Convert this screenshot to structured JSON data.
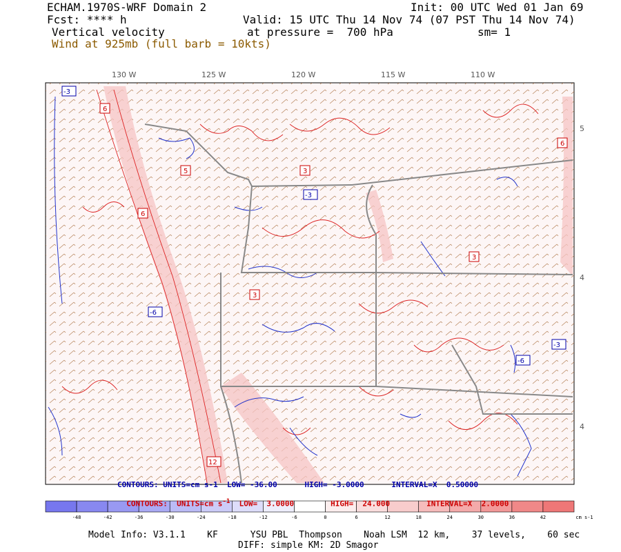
{
  "header": {
    "model": "ECHAM.1970S-WRF Domain 2",
    "init": "Init: 00 UTC Wed 01 Jan 69",
    "fcst": "Fcst: **** h",
    "valid": "Valid: 15 UTC Thu 14 Nov 74 (07 PST Thu 14 Nov 74)",
    "field": "Vertical velocity",
    "pressure": "at pressure =  700 hPa",
    "sm": "sm= 1",
    "wind": "Wind at 925mb (full barb = 10kts)"
  },
  "longitudes": [
    "130 W",
    "125 W",
    "120 W",
    "115 W",
    "110 W"
  ],
  "latitudes": [
    "5",
    "4",
    "4"
  ],
  "contour_info": {
    "blue": "CONTOURS: UNITS=cm s-1  LOW= -36.00      HIGH= -3.0000      INTERVAL=X  0.50000",
    "red_prefix": "CONTOURS:  UNITS=cm s",
    "red_sup": "-1",
    "red_low": "LOW=  3.0000",
    "red_high": "HIGH=  24.000",
    "red_interval": "INTERVAL=X  2.0000"
  },
  "colorbar": {
    "labels": [
      "-48",
      "-42",
      "-36",
      "-30",
      "-24",
      "-18",
      "-12",
      "-6",
      "0",
      "6",
      "12",
      "18",
      "24",
      "30",
      "36",
      "42"
    ],
    "units": "cm s-1",
    "colors": [
      "#7777ee",
      "#8888f0",
      "#9999f2",
      "#aaaaf4",
      "#bbbbf6",
      "#ccccf8",
      "#ddddfa",
      "#eeeefc",
      "#ffffff",
      "#fceeee",
      "#fadddd",
      "#f8cccc",
      "#f6bbbb",
      "#f4aaaa",
      "#f29999",
      "#f08888",
      "#ee7777"
    ]
  },
  "contour_labels_red": [
    "6",
    "3",
    "5",
    "6",
    "3",
    "12",
    "3",
    "6"
  ],
  "contour_labels_blue": [
    "-3",
    "-6",
    "-3",
    "-6",
    "-3"
  ],
  "footer": {
    "line1": "Model Info: V3.1.1    KF      YSU PBL  Thompson    Noah LSM  12 km,    37 levels,    60 sec",
    "line2": "DIFF: simple KM: 2D Smagor"
  }
}
